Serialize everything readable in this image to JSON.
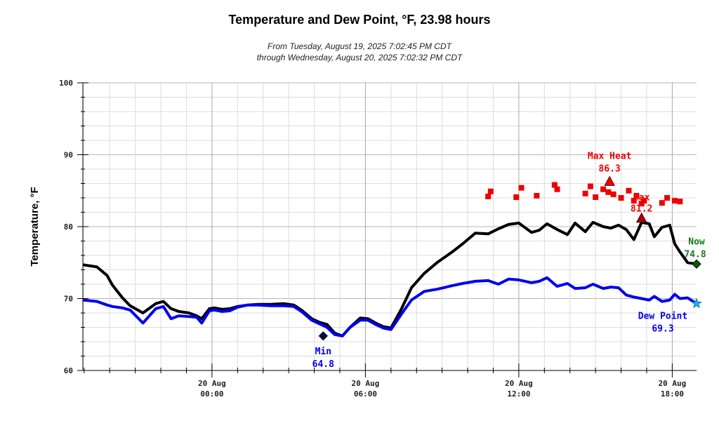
{
  "chart_data": {
    "type": "line",
    "title": "Temperature and Dew Point, °F, 23.98 hours",
    "subtitle_line1": "From Tuesday, August 19, 2025 7:02:45 PM CDT",
    "subtitle_line2": "through Wednesday, August 20, 2025 7:02:32 PM CDT",
    "ylabel": "Temperature, °F",
    "ylim": [
      60,
      100
    ],
    "yticks": [
      "100",
      "90",
      "80",
      "70",
      "60"
    ],
    "xlim": [
      -5.05,
      18.95
    ],
    "xticks": [
      {
        "hour": 0,
        "date": "20 Aug",
        "time": "00:00"
      },
      {
        "hour": 6,
        "date": "20 Aug",
        "time": "06:00"
      },
      {
        "hour": 12,
        "date": "20 Aug",
        "time": "12:00"
      },
      {
        "hour": 18,
        "date": "20 Aug",
        "time": "18:00"
      }
    ],
    "grid": true,
    "colors": {
      "temperature": "#000000",
      "dew_point": "#0000ee",
      "heat_index": "#ee0000",
      "now": "#1a7a1a",
      "now_marker": "#0b5a0b",
      "dew_marker": "#19b6ee"
    },
    "series": [
      {
        "key": "temperature",
        "x": [
          -5.05,
          -4.5,
          -4.1,
          -3.9,
          -3.5,
          -3.2,
          -2.7,
          -2.2,
          -1.9,
          -1.6,
          -1.3,
          -0.9,
          -0.6,
          -0.4,
          -0.1,
          0.1,
          0.4,
          0.7,
          1.0,
          1.4,
          1.8,
          2.3,
          2.8,
          3.2,
          3.5,
          3.9,
          4.2,
          4.5,
          4.8,
          5.1,
          5.4,
          5.8,
          6.1,
          6.4,
          6.7,
          7.0,
          7.4,
          7.8,
          8.3,
          8.8,
          9.4,
          9.8,
          10.3,
          10.8,
          11.2,
          11.6,
          12.0,
          12.5,
          12.8,
          13.1,
          13.5,
          13.9,
          14.2,
          14.6,
          14.9,
          15.3,
          15.6,
          15.9,
          16.2,
          16.5,
          16.8,
          17.1,
          17.3,
          17.6,
          17.9,
          18.1,
          18.3,
          18.6,
          18.95
        ],
        "values": [
          74.7,
          74.4,
          73.2,
          71.9,
          70.1,
          69.0,
          68.0,
          69.3,
          69.6,
          68.6,
          68.2,
          68.0,
          67.6,
          67.2,
          68.6,
          68.7,
          68.5,
          68.6,
          68.9,
          69.1,
          69.2,
          69.2,
          69.3,
          69.1,
          68.4,
          67.2,
          66.7,
          66.4,
          65.2,
          64.8,
          66.0,
          67.3,
          67.2,
          66.6,
          66.1,
          65.9,
          68.5,
          71.5,
          73.5,
          75.0,
          76.5,
          77.6,
          79.1,
          79.0,
          79.7,
          80.3,
          80.5,
          79.2,
          79.5,
          80.4,
          79.6,
          78.9,
          80.5,
          79.3,
          80.6,
          80.0,
          79.8,
          80.2,
          79.6,
          78.2,
          80.6,
          80.4,
          78.6,
          79.9,
          80.2,
          77.6,
          76.5,
          75.0,
          74.8
        ]
      },
      {
        "key": "dew_point",
        "x": [
          -5.05,
          -4.5,
          -4.1,
          -3.9,
          -3.5,
          -3.2,
          -2.7,
          -2.2,
          -1.9,
          -1.6,
          -1.3,
          -0.9,
          -0.6,
          -0.4,
          -0.1,
          0.1,
          0.4,
          0.7,
          1.0,
          1.4,
          1.8,
          2.3,
          2.8,
          3.2,
          3.5,
          3.9,
          4.2,
          4.5,
          4.8,
          5.1,
          5.4,
          5.8,
          6.1,
          6.4,
          6.7,
          7.0,
          7.4,
          7.8,
          8.3,
          8.8,
          9.4,
          9.8,
          10.3,
          10.8,
          11.2,
          11.6,
          12.0,
          12.5,
          12.8,
          13.1,
          13.5,
          13.9,
          14.2,
          14.6,
          14.9,
          15.3,
          15.6,
          15.9,
          16.2,
          16.5,
          16.8,
          17.1,
          17.3,
          17.6,
          17.9,
          18.1,
          18.3,
          18.6,
          18.95
        ],
        "values": [
          69.8,
          69.6,
          69.1,
          68.9,
          68.7,
          68.4,
          66.6,
          68.6,
          68.9,
          67.2,
          67.6,
          67.5,
          67.4,
          66.6,
          68.3,
          68.4,
          68.2,
          68.3,
          68.8,
          69.1,
          69.1,
          69.0,
          69.0,
          68.9,
          68.2,
          67.0,
          66.5,
          66.0,
          65.0,
          64.8,
          66.0,
          67.0,
          67.0,
          66.4,
          65.9,
          65.7,
          67.8,
          69.8,
          71.0,
          71.3,
          71.8,
          72.1,
          72.4,
          72.5,
          72.0,
          72.7,
          72.6,
          72.2,
          72.4,
          72.9,
          71.7,
          72.1,
          71.4,
          71.5,
          72.0,
          71.4,
          71.6,
          71.5,
          70.5,
          70.2,
          70.0,
          69.8,
          70.3,
          69.6,
          69.8,
          70.6,
          70.0,
          70.1,
          69.3
        ]
      },
      {
        "key": "heat_index",
        "x": [
          10.8,
          10.9,
          11.9,
          12.1,
          12.7,
          13.4,
          13.5,
          14.6,
          14.8,
          15.0,
          15.3,
          15.5,
          15.7,
          16.0,
          16.3,
          16.5,
          16.6,
          16.8,
          16.9,
          17.6,
          17.8,
          18.1,
          18.3
        ],
        "values": [
          84.2,
          84.9,
          84.1,
          85.4,
          84.3,
          85.8,
          85.2,
          84.6,
          85.6,
          84.1,
          85.2,
          84.8,
          84.5,
          84.0,
          85.0,
          83.6,
          84.3,
          83.2,
          83.6,
          83.3,
          84.0,
          83.6,
          83.5
        ]
      }
    ],
    "annotations": {
      "max_heat_label": "Max Heat",
      "max_heat_value": "86.3",
      "max_heat_x": 15.55,
      "max_heat_y": 86.3,
      "max_label": "Max",
      "max_value": "81.2",
      "max_x": 16.8,
      "max_y": 81.2,
      "min_label": "Min",
      "min_value": "64.8",
      "min_x": 4.35,
      "min_y": 64.8,
      "now_label": "Now",
      "now_value": "74.8",
      "now_x": 18.95,
      "now_y": 74.8,
      "dew_label": "Dew Point",
      "dew_value": "69.3",
      "dew_x": 18.95,
      "dew_y": 69.3
    }
  }
}
